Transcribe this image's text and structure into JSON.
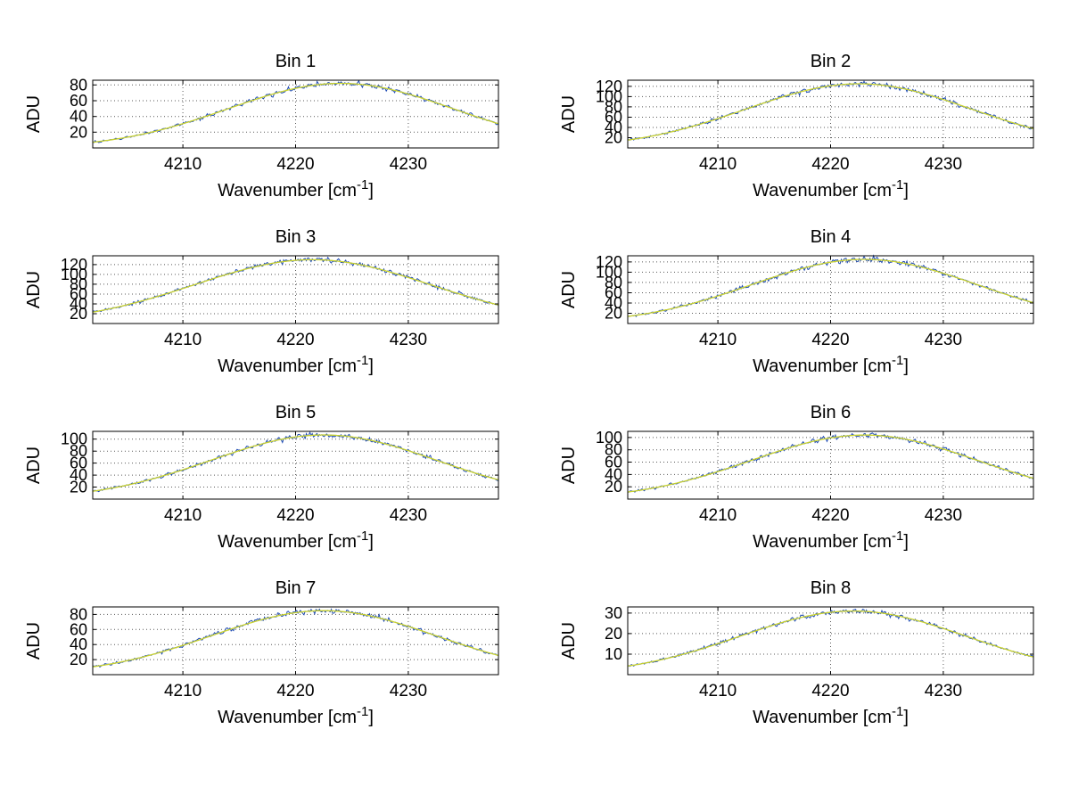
{
  "figure": {
    "background": "#ffffff",
    "grid_color": "#5a5a5a",
    "axis_color": "#000000",
    "text_color": "#000000"
  },
  "labels": {
    "ylabel": "ADU",
    "xlabel": "Wavenumber [cm⁻¹]",
    "xlabel_prefix": "Wavenumber [cm",
    "xlabel_sup": "-1",
    "xlabel_suffix": "]"
  },
  "series": [
    {
      "name": "measured-spectrum",
      "color": "#1f4bb4",
      "style": "noisy"
    },
    {
      "name": "smooth-fit",
      "color": "#c9d22e",
      "style": "smooth"
    }
  ],
  "chart_data": [
    {
      "type": "line",
      "title": "Bin 1",
      "xlabel": "Wavenumber [cm⁻¹]",
      "ylabel": "ADU",
      "x_range": [
        4202,
        4238
      ],
      "xticks": [
        4210,
        4220,
        4230
      ],
      "ylim": [
        0,
        86
      ],
      "yticks": [
        20,
        40,
        60,
        80
      ],
      "peak": {
        "amplitude": 82,
        "center": 4224,
        "sigma": 10
      },
      "seed": 11,
      "grid": true,
      "legend": "none"
    },
    {
      "type": "line",
      "title": "Bin 2",
      "xlabel": "Wavenumber [cm⁻¹]",
      "ylabel": "ADU",
      "x_range": [
        4202,
        4238
      ],
      "xticks": [
        4210,
        4220,
        4230
      ],
      "ylim": [
        0,
        132
      ],
      "yticks": [
        20,
        40,
        60,
        80,
        100,
        120
      ],
      "peak": {
        "amplitude": 125,
        "center": 4222.5,
        "sigma": 10
      },
      "seed": 22,
      "grid": true,
      "legend": "none"
    },
    {
      "type": "line",
      "title": "Bin 3",
      "xlabel": "Wavenumber [cm⁻¹]",
      "ylabel": "ADU",
      "x_range": [
        4202,
        4238
      ],
      "xticks": [
        4210,
        4220,
        4230
      ],
      "ylim": [
        0,
        138
      ],
      "yticks": [
        20,
        40,
        60,
        80,
        100,
        120
      ],
      "peak": {
        "amplitude": 130,
        "center": 4221.5,
        "sigma": 10.5
      },
      "seed": 33,
      "grid": true,
      "legend": "none"
    },
    {
      "type": "line",
      "title": "Bin 4",
      "xlabel": "Wavenumber [cm⁻¹]",
      "ylabel": "ADU",
      "x_range": [
        4202,
        4238
      ],
      "xticks": [
        4210,
        4220,
        4230
      ],
      "ylim": [
        0,
        132
      ],
      "yticks": [
        20,
        40,
        60,
        80,
        100,
        120
      ],
      "peak": {
        "amplitude": 125,
        "center": 4223,
        "sigma": 10
      },
      "seed": 44,
      "grid": true,
      "legend": "none"
    },
    {
      "type": "line",
      "title": "Bin 5",
      "xlabel": "Wavenumber [cm⁻¹]",
      "ylabel": "ADU",
      "x_range": [
        4202,
        4238
      ],
      "xticks": [
        4210,
        4220,
        4230
      ],
      "ylim": [
        0,
        113
      ],
      "yticks": [
        20,
        40,
        60,
        80,
        100
      ],
      "peak": {
        "amplitude": 107,
        "center": 4222.5,
        "sigma": 10
      },
      "seed": 55,
      "grid": true,
      "legend": "none"
    },
    {
      "type": "line",
      "title": "Bin 6",
      "xlabel": "Wavenumber [cm⁻¹]",
      "ylabel": "ADU",
      "x_range": [
        4202,
        4238
      ],
      "xticks": [
        4210,
        4220,
        4230
      ],
      "ylim": [
        0,
        110
      ],
      "yticks": [
        20,
        40,
        60,
        80,
        100
      ],
      "peak": {
        "amplitude": 104,
        "center": 4223,
        "sigma": 10
      },
      "seed": 66,
      "grid": true,
      "legend": "none"
    },
    {
      "type": "line",
      "title": "Bin 7",
      "xlabel": "Wavenumber [cm⁻¹]",
      "ylabel": "ADU",
      "x_range": [
        4202,
        4238
      ],
      "xticks": [
        4210,
        4220,
        4230
      ],
      "ylim": [
        0,
        90
      ],
      "yticks": [
        20,
        40,
        60,
        80
      ],
      "peak": {
        "amplitude": 85,
        "center": 4222.5,
        "sigma": 10
      },
      "seed": 77,
      "grid": true,
      "legend": "none"
    },
    {
      "type": "line",
      "title": "Bin 8",
      "xlabel": "Wavenumber [cm⁻¹]",
      "ylabel": "ADU",
      "x_range": [
        4202,
        4238
      ],
      "xticks": [
        4210,
        4220,
        4230
      ],
      "ylim": [
        0,
        33
      ],
      "yticks": [
        10,
        20,
        30
      ],
      "peak": {
        "amplitude": 31,
        "center": 4222,
        "sigma": 10
      },
      "seed": 88,
      "grid": true,
      "legend": "none"
    }
  ]
}
